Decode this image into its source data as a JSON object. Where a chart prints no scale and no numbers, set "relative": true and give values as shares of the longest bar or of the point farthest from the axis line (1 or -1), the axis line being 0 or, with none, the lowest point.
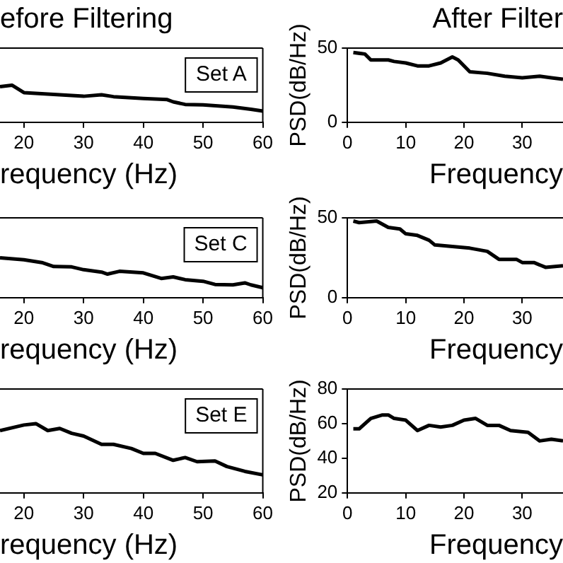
{
  "chart_data": [
    {
      "type": "line",
      "title": "efore Filtering",
      "xlabel": "requency (Hz)",
      "annotations": [
        "Set A"
      ],
      "relative": true,
      "xlim": [
        16,
        60
      ],
      "xticks": [
        20,
        30,
        40,
        50,
        60
      ],
      "series": [
        {
          "color": "#000000",
          "x": [
            16,
            18,
            20,
            25,
            30,
            33,
            35,
            40,
            44,
            45,
            47,
            50,
            55,
            58,
            60
          ],
          "values": [
            0.96,
            1,
            0.8,
            0.75,
            0.7,
            0.74,
            0.69,
            0.64,
            0.61,
            0.55,
            0.48,
            0.47,
            0.41,
            0.35,
            0.3
          ]
        }
      ]
    },
    {
      "type": "line",
      "title": "After Filter",
      "xlabel": "Frequency",
      "ylabel": "PSD(dB/Hz)",
      "xlim": [
        0,
        37
      ],
      "xticks": [
        0,
        10,
        20,
        30
      ],
      "ylim": [
        0,
        50
      ],
      "yticks": [
        0,
        50
      ],
      "series": [
        {
          "color": "#000000",
          "x": [
            1,
            3,
            4,
            7,
            8,
            10,
            12,
            14,
            16,
            18,
            19,
            21,
            24,
            27,
            30,
            33,
            35,
            37
          ],
          "values": [
            47,
            46,
            42,
            42,
            41,
            40,
            38,
            38,
            40,
            44,
            42,
            34,
            33,
            31,
            30,
            31,
            30,
            29
          ]
        }
      ]
    },
    {
      "type": "line",
      "xlabel": "requency (Hz)",
      "annotations": [
        "Set C"
      ],
      "relative": true,
      "xlim": [
        16,
        60
      ],
      "xticks": [
        20,
        30,
        40,
        50,
        60
      ],
      "series": [
        {
          "color": "#000000",
          "x": [
            16,
            20,
            23,
            25,
            28,
            30,
            33,
            34,
            36,
            40,
            43,
            45,
            47,
            50,
            52,
            55,
            57,
            58,
            60
          ],
          "values": [
            1,
            0.95,
            0.88,
            0.78,
            0.77,
            0.7,
            0.64,
            0.59,
            0.66,
            0.62,
            0.48,
            0.52,
            0.45,
            0.41,
            0.33,
            0.32,
            0.37,
            0.32,
            0.25
          ]
        }
      ]
    },
    {
      "type": "line",
      "xlabel": "Frequency",
      "ylabel": "PSD(dB/Hz)",
      "xlim": [
        0,
        37
      ],
      "xticks": [
        0,
        10,
        20,
        30
      ],
      "ylim": [
        0,
        50
      ],
      "yticks": [
        0,
        50
      ],
      "series": [
        {
          "color": "#000000",
          "x": [
            1,
            2,
            5,
            7,
            9,
            10,
            12,
            14,
            15,
            18,
            21,
            24,
            26,
            29,
            30,
            32,
            34,
            37
          ],
          "values": [
            48,
            47,
            48,
            44,
            43,
            40,
            39,
            36,
            33,
            32,
            31,
            29,
            24,
            24,
            22,
            22,
            19,
            20
          ]
        }
      ]
    },
    {
      "type": "line",
      "xlabel": "requency (Hz)",
      "annotations": [
        "Set E"
      ],
      "relative": true,
      "xlim": [
        16,
        60
      ],
      "xticks": [
        20,
        30,
        40,
        50,
        60
      ],
      "series": [
        {
          "color": "#000000",
          "x": [
            16,
            20,
            22,
            24,
            26,
            28,
            30,
            33,
            35,
            38,
            40,
            42,
            45,
            47,
            49,
            52,
            54,
            57,
            60
          ],
          "values": [
            0.9,
            0.98,
            1,
            0.9,
            0.93,
            0.86,
            0.82,
            0.7,
            0.7,
            0.64,
            0.57,
            0.57,
            0.47,
            0.51,
            0.45,
            0.46,
            0.38,
            0.31,
            0.26
          ]
        }
      ]
    },
    {
      "type": "line",
      "xlabel": "Frequency",
      "ylabel": "PSD(dB/Hz)",
      "xlim": [
        0,
        37
      ],
      "xticks": [
        0,
        10,
        20,
        30
      ],
      "ylim": [
        20,
        80
      ],
      "yticks": [
        20,
        40,
        60,
        80
      ],
      "series": [
        {
          "color": "#000000",
          "x": [
            1,
            2,
            4,
            6,
            7,
            8,
            10,
            12,
            14,
            16,
            18,
            20,
            22,
            24,
            26,
            28,
            31,
            33,
            35,
            37
          ],
          "values": [
            57,
            57,
            63,
            65,
            65,
            63,
            62,
            56,
            59,
            58,
            59,
            62,
            63,
            59,
            59,
            56,
            55,
            50,
            51,
            50
          ]
        }
      ]
    }
  ]
}
